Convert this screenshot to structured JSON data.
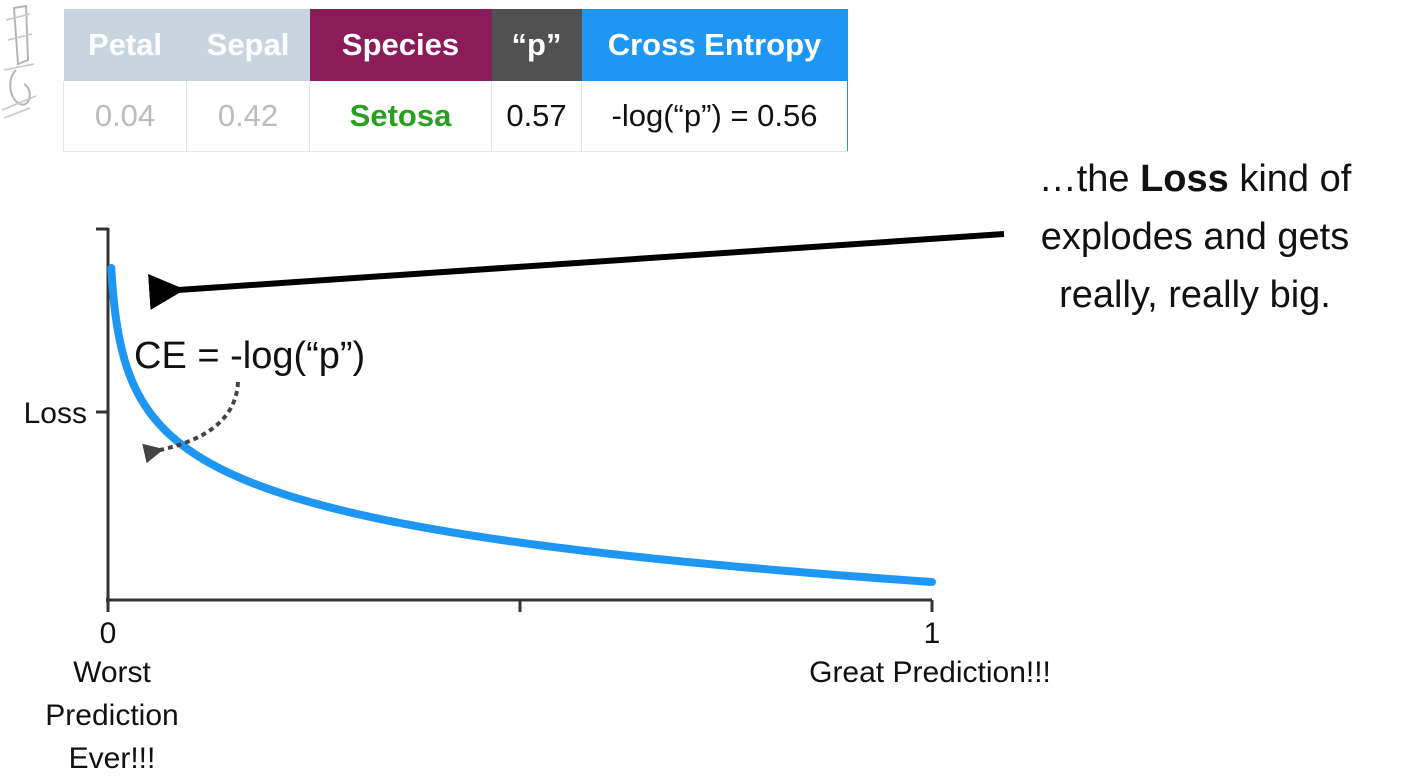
{
  "table": {
    "headers": {
      "petal": "Petal",
      "sepal": "Sepal",
      "species": "Species",
      "p": "“p”",
      "cross_entropy": "Cross Entropy"
    },
    "row": {
      "petal": "0.04",
      "sepal": "0.42",
      "species": "Setosa",
      "p": "0.57",
      "cross_entropy": "-log(“p”) = 0.56"
    },
    "colors": {
      "feature_header": "#c9d5de",
      "species_header": "#8a1c59",
      "p_header": "#515151",
      "ce_header": "#1e96f3",
      "species_value": "#28a020"
    }
  },
  "annotation": {
    "line1_prefix": "…the ",
    "line1_bold": "Loss",
    "line1_suffix": " kind of",
    "line2": "explodes and gets",
    "line3": "really, really big."
  },
  "chart_data": {
    "type": "line",
    "title": "",
    "formula": "CE = -log(“p”)",
    "ylabel": "Loss",
    "xlabel": "",
    "x_ticks": [
      {
        "value": 0,
        "label": "0",
        "caption": [
          "Worst",
          "Prediction",
          "Ever!!!"
        ]
      },
      {
        "value": 0.5,
        "label": "",
        "caption": []
      },
      {
        "value": 1,
        "label": "1",
        "caption": [
          "Great Prediction!!!"
        ]
      }
    ],
    "y_tick_label": "Loss",
    "xlim": [
      0,
      1
    ],
    "series": [
      {
        "color": "#1e96f3",
        "function": "-log(p)",
        "x_range": [
          0.004,
          1
        ]
      }
    ]
  }
}
